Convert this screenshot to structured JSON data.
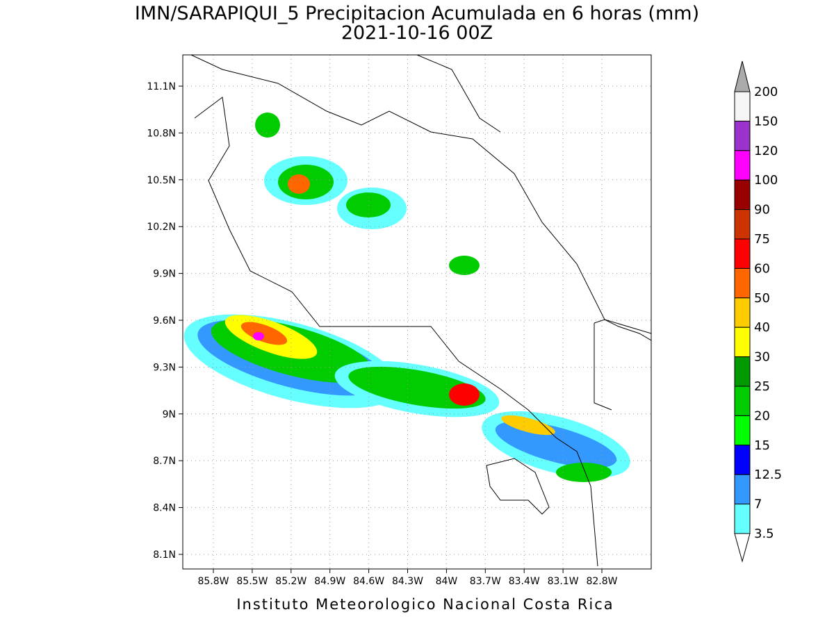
{
  "header": {
    "title": "IMN/SARAPIQUI_5 Precipitacion Acumulada en 6 horas (mm)",
    "subtitle": "2021-10-16 00Z"
  },
  "map": {
    "lat_ticks": [
      "11.1N",
      "10.8N",
      "10.5N",
      "10.2N",
      "9.9N",
      "9.6N",
      "9.3N",
      "9N",
      "8.7N",
      "8.4N",
      "8.1N"
    ],
    "lon_ticks": [
      "85.8W",
      "85.5W",
      "85.2W",
      "84.9W",
      "84.6W",
      "84.3W",
      "84W",
      "83.7W",
      "83.4W",
      "83.1W",
      "82.8W"
    ]
  },
  "colorbar": {
    "labels": [
      "200",
      "150",
      "120",
      "100",
      "90",
      "75",
      "60",
      "50",
      "40",
      "30",
      "25",
      "20",
      "15",
      "12.5",
      "7",
      "3.5"
    ],
    "colors": [
      "#f5f5f5",
      "#9933cc",
      "#ff00ff",
      "#990000",
      "#cc3300",
      "#ff0000",
      "#ff6600",
      "#ffcc00",
      "#ffff00",
      "#009900",
      "#00cc00",
      "#00ff00",
      "#0000ff",
      "#3399ff",
      "#66ffff"
    ],
    "over_color": "#aaaaaa",
    "under_color": "#ffffff"
  },
  "footer": {
    "credit": "Instituto Meteorologico Nacional Costa Rica"
  }
}
